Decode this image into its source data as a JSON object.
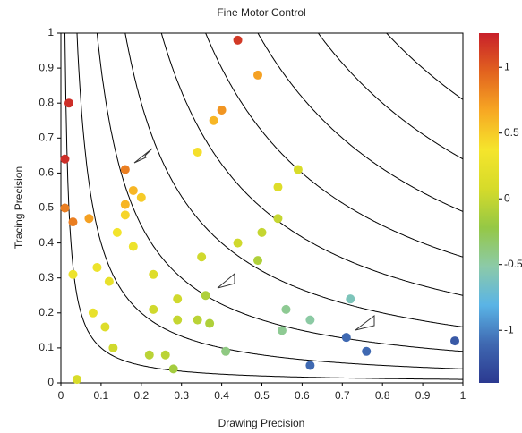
{
  "chart_data": {
    "type": "scatter",
    "title": "Fine Motor Control",
    "x_label": "Drawing Precision",
    "y_label": "Tracing Precision",
    "xlim": [
      0,
      1
    ],
    "ylim": [
      0,
      1
    ],
    "xticks": [
      0,
      0.1,
      0.2,
      0.3,
      0.4,
      0.5,
      0.6,
      0.7,
      0.8,
      0.9,
      1
    ],
    "yticks": [
      0,
      0.1,
      0.2,
      0.3,
      0.4,
      0.5,
      0.6,
      0.7,
      0.8,
      0.9,
      1
    ],
    "x": [
      0.44,
      0.49,
      0.02,
      0.4,
      0.38,
      0.01,
      0.34,
      0.59,
      0.16,
      0.18,
      0.2,
      0.16,
      0.16,
      0.01,
      0.07,
      0.03,
      0.54,
      0.54,
      0.14,
      0.5,
      0.44,
      0.18,
      0.35,
      0.49,
      0.09,
      0.03,
      0.23,
      0.12,
      0.36,
      0.29,
      0.72,
      0.56,
      0.23,
      0.08,
      0.62,
      0.34,
      0.29,
      0.37,
      0.11,
      0.55,
      0.71,
      0.98,
      0.13,
      0.41,
      0.76,
      0.22,
      0.26,
      0.62,
      0.28,
      0.04
    ],
    "values": [
      0.98,
      0.88,
      0.8,
      0.78,
      0.75,
      0.64,
      0.66,
      0.61,
      0.61,
      0.55,
      0.53,
      0.51,
      0.48,
      0.5,
      0.47,
      0.46,
      0.56,
      0.47,
      0.43,
      0.43,
      0.4,
      0.39,
      0.36,
      0.35,
      0.33,
      0.31,
      0.31,
      0.29,
      0.25,
      0.24,
      0.24,
      0.21,
      0.21,
      0.2,
      0.18,
      0.18,
      0.18,
      0.17,
      0.16,
      0.15,
      0.13,
      0.12,
      0.1,
      0.09,
      0.09,
      0.08,
      0.08,
      0.05,
      0.04,
      0.01
    ],
    "color_values": [
      1.15,
      0.7,
      1.2,
      0.75,
      0.6,
      1.2,
      0.4,
      0.1,
      0.85,
      0.6,
      0.5,
      0.6,
      0.45,
      0.85,
      0.7,
      0.85,
      0.15,
      0,
      0.35,
      0,
      0.05,
      0.3,
      0.05,
      -0.1,
      0.3,
      0.3,
      0.15,
      0.25,
      -0.1,
      0.05,
      -0.6,
      -0.45,
      0.05,
      0.25,
      -0.5,
      -0.05,
      0,
      -0.1,
      0.15,
      -0.45,
      -1.1,
      -1.2,
      0.05,
      -0.4,
      -1.1,
      -0.05,
      -0.05,
      -1.1,
      -0.15,
      0.1
    ],
    "contour_levels": [
      0.01,
      0.04,
      0.09,
      0.16,
      0.25,
      0.36,
      0.49,
      0.64,
      0.81
    ],
    "colorbar": {
      "clim": [
        -1.4,
        1.26
      ],
      "ticks": [
        1,
        0.5,
        0,
        -0.5,
        -1
      ],
      "colors": [
        "#2b3990",
        "#3f68b1",
        "#5ab4e6",
        "#8ccaa8",
        "#95c845",
        "#d6db2a",
        "#f5e52c",
        "#f7a823",
        "#e2631f",
        "#c8202a"
      ]
    }
  }
}
